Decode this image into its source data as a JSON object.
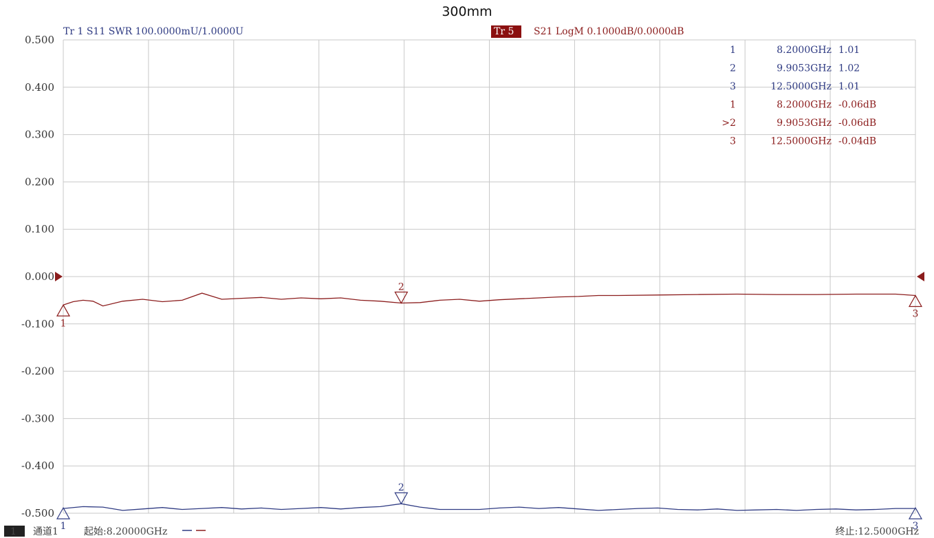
{
  "chart_data": {
    "type": "line",
    "title": "300mm",
    "ylim": [
      -0.5,
      0.5
    ],
    "y_ticks": [
      "0.500",
      "0.400",
      "0.300",
      "0.200",
      "0.100",
      "0.000",
      "-0.100",
      "-0.200",
      "-0.300",
      "-0.400",
      "-0.500"
    ],
    "x_range_ghz": [
      8.2,
      12.5
    ],
    "grid": true,
    "trace1_header": "Tr 1  S11 SWR 100.0000mU/1.0000U",
    "trace5_badge": "Tr 5",
    "trace5_header": "S21 LogM 0.1000dB/0.0000dB",
    "colors": {
      "trace1": "#2e3a82",
      "trace5": "#8b1c1c",
      "grid": "#c8c8c8",
      "badge": "#8b1010"
    },
    "series": [
      {
        "x_ghz": [
          8.2,
          8.3,
          8.4,
          8.5,
          8.6,
          8.7,
          8.8,
          8.9,
          9.0,
          9.1,
          9.2,
          9.3,
          9.4,
          9.5,
          9.6,
          9.7,
          9.8,
          9.9053,
          10.0,
          10.1,
          10.2,
          10.3,
          10.4,
          10.5,
          10.6,
          10.7,
          10.8,
          10.9,
          11.0,
          11.1,
          11.2,
          11.3,
          11.4,
          11.5,
          11.6,
          11.7,
          11.8,
          11.9,
          12.0,
          12.1,
          12.2,
          12.3,
          12.4,
          12.5
        ],
        "values": [
          1.01,
          1.014,
          1.013,
          1.006,
          1.009,
          1.012,
          1.008,
          1.01,
          1.012,
          1.009,
          1.011,
          1.008,
          1.01,
          1.012,
          1.009,
          1.012,
          1.014,
          1.02,
          1.013,
          1.008,
          1.008,
          1.008,
          1.011,
          1.013,
          1.01,
          1.012,
          1.009,
          1.006,
          1.008,
          1.01,
          1.011,
          1.008,
          1.007,
          1.009,
          1.006,
          1.007,
          1.008,
          1.006,
          1.008,
          1.009,
          1.007,
          1.008,
          1.01,
          1.01
        ]
      },
      {
        "x_ghz": [
          8.2,
          8.25,
          8.3,
          8.35,
          8.4,
          8.5,
          8.6,
          8.7,
          8.8,
          8.9,
          9.0,
          9.1,
          9.2,
          9.3,
          9.4,
          9.5,
          9.6,
          9.7,
          9.8,
          9.9053,
          10.0,
          10.1,
          10.2,
          10.3,
          10.4,
          10.5,
          10.6,
          10.7,
          10.8,
          10.9,
          11.0,
          11.2,
          11.4,
          11.6,
          11.8,
          12.0,
          12.2,
          12.4,
          12.5
        ],
        "values": [
          -0.06,
          -0.053,
          -0.05,
          -0.052,
          -0.062,
          -0.052,
          -0.048,
          -0.053,
          -0.05,
          -0.035,
          -0.048,
          -0.046,
          -0.044,
          -0.048,
          -0.045,
          -0.047,
          -0.045,
          -0.05,
          -0.052,
          -0.056,
          -0.055,
          -0.05,
          -0.048,
          -0.052,
          -0.049,
          -0.047,
          -0.045,
          -0.043,
          -0.042,
          -0.04,
          -0.04,
          -0.039,
          -0.038,
          -0.037,
          -0.038,
          -0.038,
          -0.037,
          -0.037,
          -0.04
        ]
      }
    ],
    "markers_trace1": [
      {
        "id": "1",
        "freq": "8.2000GHz",
        "value": "1.01"
      },
      {
        "id": "2",
        "freq": "9.9053GHz",
        "value": "1.02"
      },
      {
        "id": "3",
        "freq": "12.5000GHz",
        "value": "1.01"
      }
    ],
    "markers_trace5": [
      {
        "id": "1",
        "freq": "8.2000GHz",
        "value": "-0.06dB"
      },
      {
        "id": ">2",
        "freq": "9.9053GHz",
        "value": "-0.06dB"
      },
      {
        "id": "3",
        "freq": "12.5000GHz",
        "value": "-0.04dB"
      }
    ]
  },
  "footer": {
    "channel_num": "1",
    "channel_label": "通道1",
    "start": "起始:8.20000GHz",
    "stop": "终止:12.5000GHz"
  }
}
